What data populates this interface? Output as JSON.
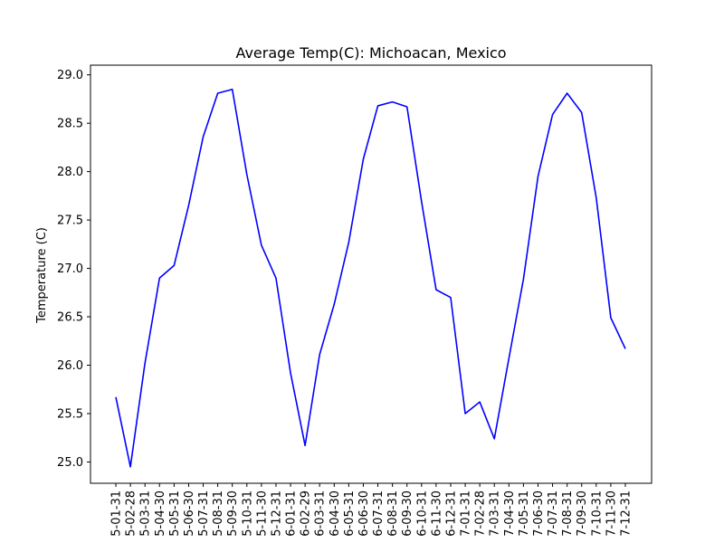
{
  "chart_data": {
    "type": "line",
    "title": "Average Temp(C): Michoacan, Mexico",
    "xlabel": "",
    "ylabel": "Temperature (C)",
    "ylim": [
      24.78,
      29.1
    ],
    "yticks": [
      "25.0",
      "25.5",
      "26.0",
      "26.5",
      "27.0",
      "27.5",
      "28.0",
      "28.5",
      "29.0"
    ],
    "grid": false,
    "x": [
      "5-01-31",
      "5-02-28",
      "5-03-31",
      "5-04-30",
      "5-05-31",
      "5-06-30",
      "5-07-31",
      "5-08-31",
      "5-09-30",
      "5-10-31",
      "5-11-30",
      "5-12-31",
      "6-01-31",
      "6-02-29",
      "6-03-31",
      "6-04-30",
      "6-05-31",
      "6-06-30",
      "6-07-31",
      "6-08-31",
      "6-09-30",
      "6-10-31",
      "6-11-30",
      "6-12-31",
      "7-01-31",
      "7-02-28",
      "7-03-31",
      "7-04-30",
      "7-05-31",
      "7-06-30",
      "7-07-31",
      "7-08-31",
      "7-09-30",
      "7-10-31",
      "7-11-30",
      "7-12-31"
    ],
    "series": [
      {
        "color": "#0000ff",
        "values": [
          25.67,
          24.95,
          26.02,
          26.9,
          27.03,
          27.65,
          28.36,
          28.81,
          28.85,
          27.97,
          27.24,
          26.9,
          25.92,
          25.17,
          26.11,
          26.63,
          27.27,
          28.13,
          28.68,
          28.72,
          28.67,
          27.69,
          26.78,
          26.7,
          25.5,
          25.62,
          25.24,
          26.07,
          26.89,
          27.95,
          28.59,
          28.81,
          28.61,
          27.73,
          26.49,
          26.17
        ]
      }
    ]
  }
}
